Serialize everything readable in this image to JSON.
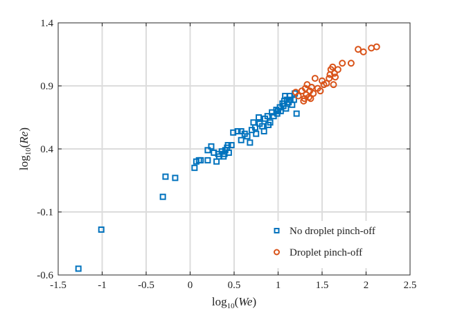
{
  "chart_data": {
    "type": "scatter",
    "title": "",
    "xlabel": {
      "prefix": "log",
      "subscript": "10",
      "argument": "We"
    },
    "ylabel": {
      "prefix": "log",
      "subscript": "10",
      "argument": "Re"
    },
    "xlim": [
      -1.5,
      2.5
    ],
    "ylim": [
      -0.6,
      1.4
    ],
    "xticks": [
      -1.5,
      -1,
      -0.5,
      0,
      0.5,
      1,
      1.5,
      2,
      2.5
    ],
    "yticks": [
      -0.6,
      -0.1,
      0.4,
      0.9,
      1.4
    ],
    "xtick_labels": [
      "-1.5",
      "-1",
      "-0.5",
      "0",
      "0.5",
      "1",
      "1.5",
      "2",
      "2.5"
    ],
    "ytick_labels": [
      "-0.6",
      "-0.1",
      "0.4",
      "0.9",
      "1.4"
    ],
    "grid": true,
    "legend_position": "bottom-right",
    "series": [
      {
        "name": "No droplet pinch-off",
        "marker": "square",
        "color": "#0072BD",
        "points": [
          [
            -1.27,
            -0.55
          ],
          [
            -1.01,
            -0.24
          ],
          [
            -0.31,
            0.02
          ],
          [
            -0.28,
            0.18
          ],
          [
            -0.17,
            0.17
          ],
          [
            0.05,
            0.25
          ],
          [
            0.07,
            0.3
          ],
          [
            0.1,
            0.31
          ],
          [
            0.12,
            0.31
          ],
          [
            0.2,
            0.31
          ],
          [
            0.2,
            0.39
          ],
          [
            0.24,
            0.42
          ],
          [
            0.27,
            0.37
          ],
          [
            0.3,
            0.3
          ],
          [
            0.32,
            0.36
          ],
          [
            0.33,
            0.34
          ],
          [
            0.36,
            0.38
          ],
          [
            0.38,
            0.34
          ],
          [
            0.39,
            0.36
          ],
          [
            0.4,
            0.39
          ],
          [
            0.42,
            0.41
          ],
          [
            0.43,
            0.43
          ],
          [
            0.44,
            0.37
          ],
          [
            0.47,
            0.43
          ],
          [
            0.49,
            0.53
          ],
          [
            0.54,
            0.54
          ],
          [
            0.58,
            0.47
          ],
          [
            0.58,
            0.54
          ],
          [
            0.62,
            0.52
          ],
          [
            0.65,
            0.5
          ],
          [
            0.68,
            0.45
          ],
          [
            0.7,
            0.55
          ],
          [
            0.72,
            0.61
          ],
          [
            0.74,
            0.57
          ],
          [
            0.75,
            0.52
          ],
          [
            0.78,
            0.65
          ],
          [
            0.79,
            0.6
          ],
          [
            0.82,
            0.58
          ],
          [
            0.84,
            0.54
          ],
          [
            0.85,
            0.64
          ],
          [
            0.88,
            0.66
          ],
          [
            0.89,
            0.59
          ],
          [
            0.91,
            0.61
          ],
          [
            0.93,
            0.69
          ],
          [
            0.95,
            0.66
          ],
          [
            0.98,
            0.71
          ],
          [
            0.99,
            0.68
          ],
          [
            1.0,
            0.7
          ],
          [
            1.02,
            0.73
          ],
          [
            1.03,
            0.7
          ],
          [
            1.05,
            0.76
          ],
          [
            1.06,
            0.74
          ],
          [
            1.07,
            0.78
          ],
          [
            1.08,
            0.82
          ],
          [
            1.09,
            0.72
          ],
          [
            1.1,
            0.79
          ],
          [
            1.12,
            0.77
          ],
          [
            1.13,
            0.82
          ],
          [
            1.14,
            0.79
          ],
          [
            1.16,
            0.75
          ],
          [
            1.18,
            0.79
          ],
          [
            1.19,
            0.84
          ],
          [
            1.21,
            0.68
          ]
        ]
      },
      {
        "name": "Droplet pinch-off",
        "marker": "circle",
        "color": "#D95319",
        "points": [
          [
            1.2,
            0.85
          ],
          [
            1.23,
            0.82
          ],
          [
            1.27,
            0.86
          ],
          [
            1.29,
            0.78
          ],
          [
            1.3,
            0.8
          ],
          [
            1.31,
            0.88
          ],
          [
            1.32,
            0.83
          ],
          [
            1.33,
            0.91
          ],
          [
            1.35,
            0.81
          ],
          [
            1.36,
            0.86
          ],
          [
            1.37,
            0.8
          ],
          [
            1.38,
            0.89
          ],
          [
            1.4,
            0.84
          ],
          [
            1.42,
            0.96
          ],
          [
            1.45,
            0.88
          ],
          [
            1.48,
            0.86
          ],
          [
            1.5,
            0.94
          ],
          [
            1.52,
            0.91
          ],
          [
            1.55,
            0.92
          ],
          [
            1.58,
            0.96
          ],
          [
            1.59,
            0.99
          ],
          [
            1.6,
            1.03
          ],
          [
            1.62,
            1.05
          ],
          [
            1.63,
            0.91
          ],
          [
            1.64,
            1.0
          ],
          [
            1.65,
            0.97
          ],
          [
            1.68,
            1.03
          ],
          [
            1.73,
            1.08
          ],
          [
            1.83,
            1.08
          ],
          [
            1.91,
            1.19
          ],
          [
            1.97,
            1.17
          ],
          [
            2.06,
            1.2
          ],
          [
            2.12,
            1.21
          ]
        ]
      }
    ]
  }
}
